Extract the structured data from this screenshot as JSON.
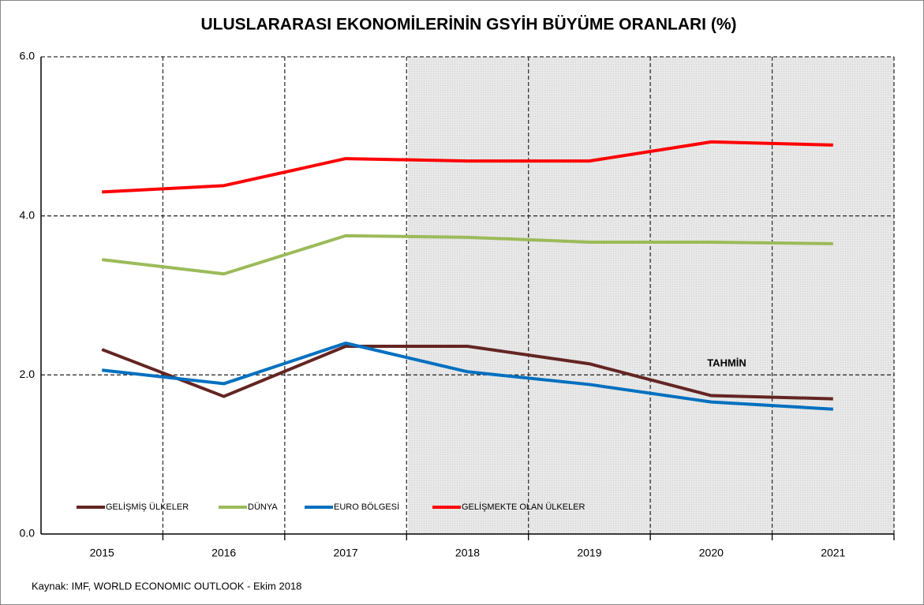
{
  "chart_data": {
    "type": "line",
    "title": "ULUSLARARASI EKONOMİLERİNİN GSYİH BÜYÜME ORANLARI (%)",
    "categories": [
      "2015",
      "2016",
      "2017",
      "2018",
      "2019",
      "2020",
      "2021"
    ],
    "series": [
      {
        "name": "GELİŞMİŞ ÜLKELER",
        "color": "#632523",
        "values": [
          2.32,
          1.73,
          2.36,
          2.36,
          2.14,
          1.74,
          1.7
        ]
      },
      {
        "name": "DÜNYA",
        "color": "#9bbb59",
        "values": [
          3.45,
          3.27,
          3.75,
          3.73,
          3.67,
          3.67,
          3.65
        ]
      },
      {
        "name": "EURO BÖLGESİ",
        "color": "#0070c0",
        "values": [
          2.06,
          1.89,
          2.4,
          2.04,
          1.88,
          1.66,
          1.57
        ]
      },
      {
        "name": "GELİŞMEKTE OLAN ÜLKELER",
        "color": "#ff0000",
        "values": [
          4.3,
          4.38,
          4.72,
          4.69,
          4.69,
          4.93,
          4.89
        ]
      }
    ],
    "ylim": [
      0,
      6
    ],
    "yticks": [
      {
        "value": 0,
        "label": "0.0"
      },
      {
        "value": 2,
        "label": "2.0"
      },
      {
        "value": 4,
        "label": "4.0"
      },
      {
        "value": 6,
        "label": "6.0"
      }
    ],
    "grid": true,
    "annotations": [
      "TAHMİN"
    ],
    "source": "Kaynak: IMF, WORLD ECONOMIC OUTLOOK  - Ekim 2018"
  }
}
